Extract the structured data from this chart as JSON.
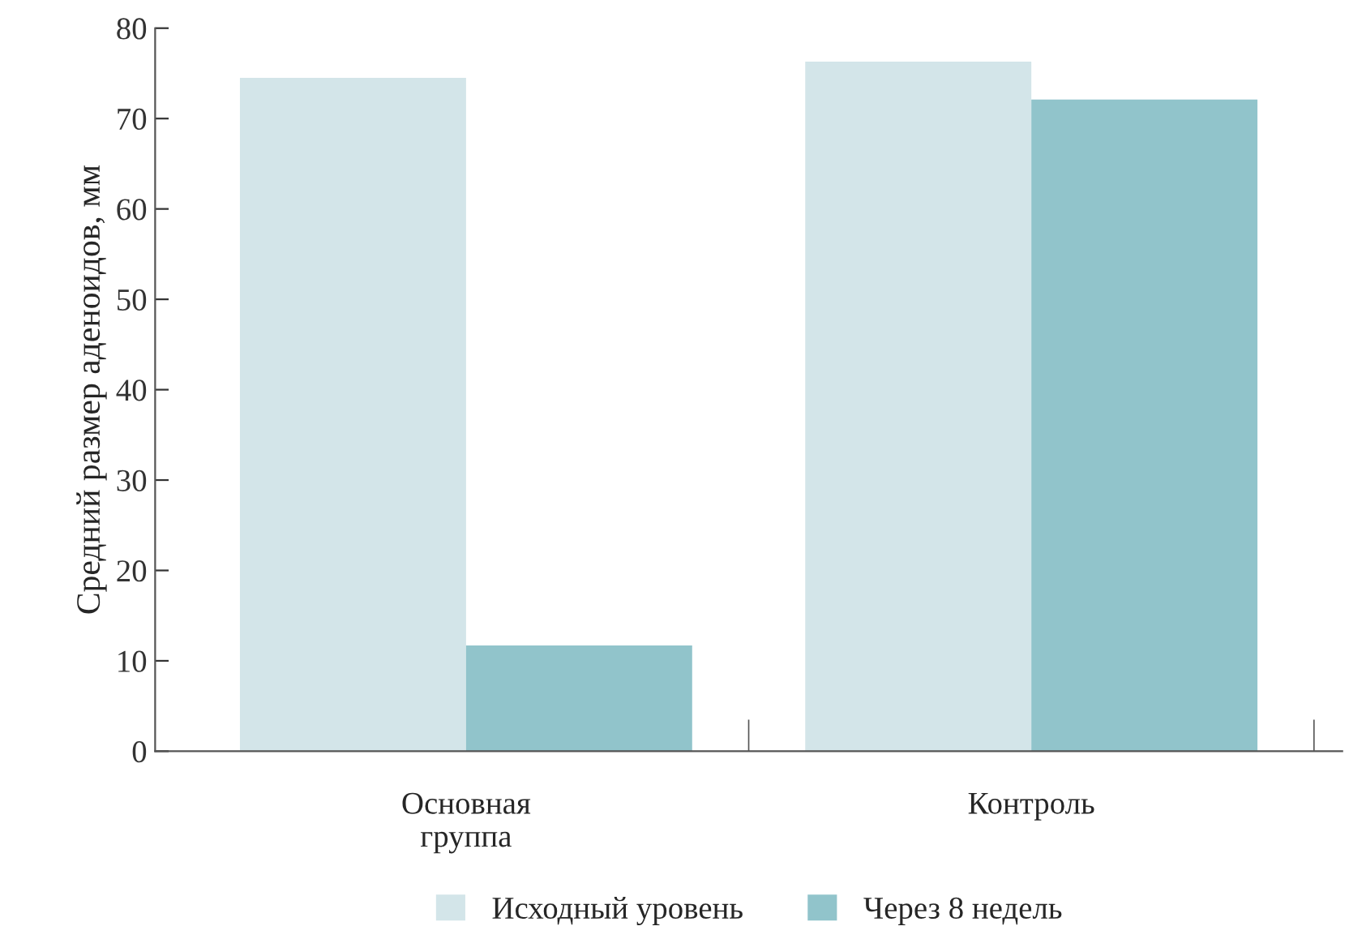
{
  "chart_data": {
    "type": "bar",
    "ylabel": "Средний размер аденоидов, мм",
    "categories": [
      "Основная\nгруппа",
      "Контроль"
    ],
    "series": [
      {
        "name": "Исходный уровень",
        "color": "#d3e5e9",
        "values": [
          74.5,
          76.3
        ]
      },
      {
        "name": "Через 8 недель",
        "color": "#91c4cb",
        "values": [
          11.7,
          72.1
        ]
      }
    ],
    "ylim": [
      0,
      80
    ],
    "yticks": [
      0,
      10,
      20,
      30,
      40,
      50,
      60,
      70,
      80
    ],
    "grid": false,
    "legend": "bottom"
  }
}
